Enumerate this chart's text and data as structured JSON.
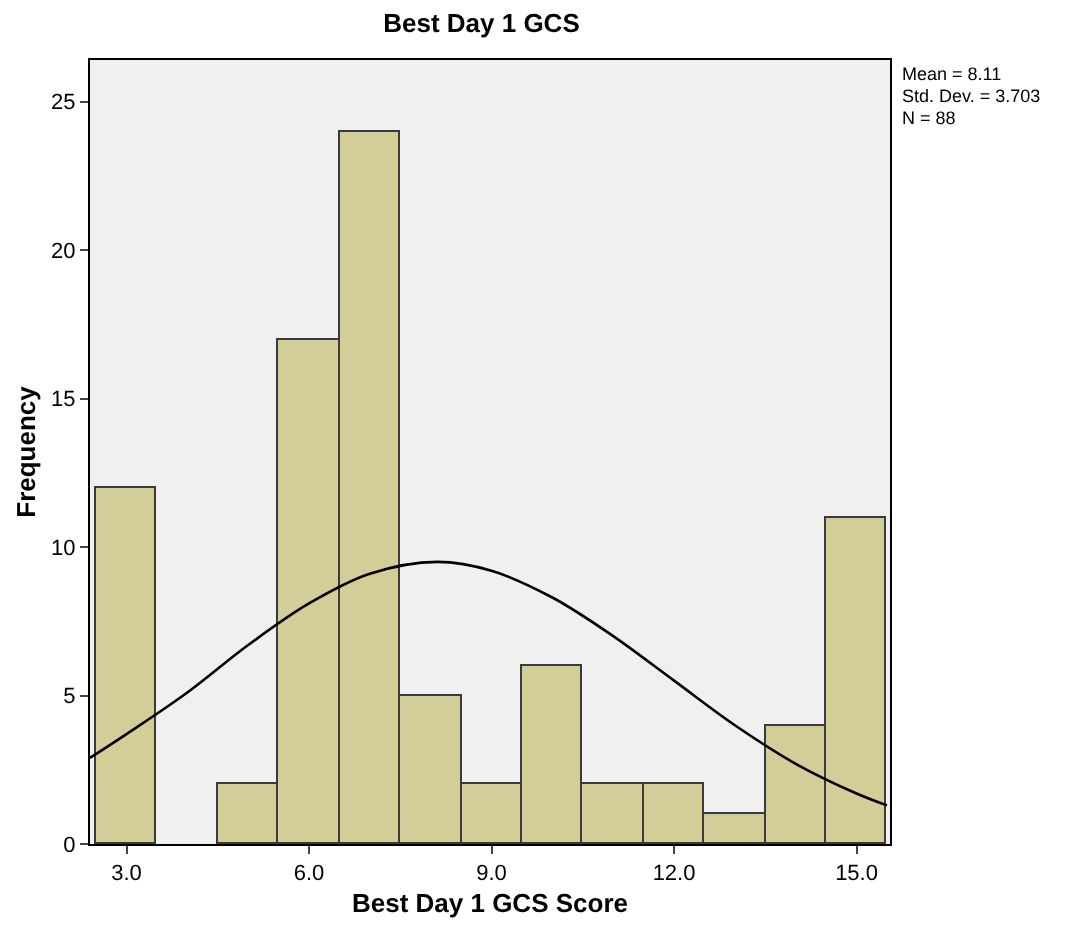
{
  "chart_data": {
    "type": "histogram",
    "title": "Best Day 1 GCS",
    "xlabel": "Best Day 1 GCS Score",
    "ylabel": "Frequency",
    "series": [
      {
        "color": "#d3ce98",
        "bins": [
          2.5,
          3.5,
          4.5,
          5.5,
          6.5,
          7.5,
          8.5,
          9.5,
          10.5,
          11.5,
          12.5,
          13.5,
          14.5,
          15.5
        ],
        "values": [
          12,
          0,
          2,
          17,
          24,
          5,
          2,
          6,
          2,
          2,
          1,
          4,
          11
        ]
      },
      {
        "type": "line",
        "color": "#000000",
        "x": [
          2.4,
          3,
          4,
          5,
          6,
          7,
          8.11,
          9,
          10,
          11,
          12,
          13,
          14,
          15,
          15.5
        ],
        "values": [
          2.9,
          3.7,
          5.1,
          6.7,
          8.1,
          9.1,
          9.5,
          9.2,
          8.3,
          7.0,
          5.5,
          4.0,
          2.7,
          1.7,
          1.3
        ]
      }
    ],
    "xlim": [
      2.4,
      15.55
    ],
    "ylim": [
      0,
      26.4
    ],
    "xticks": [
      {
        "value": 3,
        "label": "3.0"
      },
      {
        "value": 6,
        "label": "6.0"
      },
      {
        "value": 9,
        "label": "9.0"
      },
      {
        "value": 12,
        "label": "12.0"
      },
      {
        "value": 15,
        "label": "15.0"
      }
    ],
    "yticks": [
      0,
      5,
      10,
      15,
      20,
      25
    ],
    "grid": false,
    "marker": "none",
    "line_style": "solid",
    "annotations": [
      "Mean = 8.11",
      "Std. Dev. = 3.703",
      "N = 88"
    ]
  }
}
